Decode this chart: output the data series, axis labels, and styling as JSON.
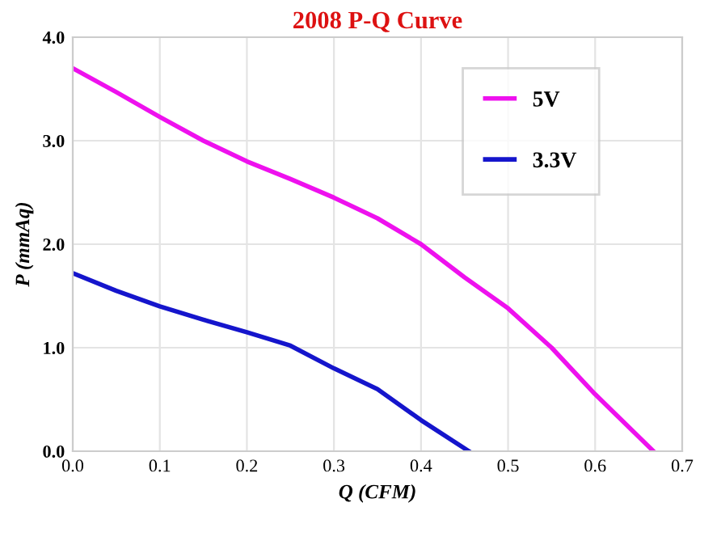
{
  "chart_data": {
    "type": "line",
    "title": "2008 P-Q Curve",
    "xlabel": "Q (CFM)",
    "ylabel": "P (mmAq)",
    "xlim": [
      0.0,
      0.7
    ],
    "xticks": [
      {
        "value": 0,
        "label": "0.0"
      },
      0.1,
      0.2,
      0.3,
      0.4,
      0.5,
      0.6,
      0.7
    ],
    "ylim": [
      0.0,
      4.0
    ],
    "yticks": [
      {
        "value": 0,
        "label": "0.0"
      },
      {
        "value": 1,
        "label": "1.0"
      },
      {
        "value": 2,
        "label": "2.0"
      },
      {
        "value": 3,
        "label": "3.0"
      },
      {
        "value": 4,
        "label": "4.0"
      }
    ],
    "grid": true,
    "legend": "top right",
    "marker": "none",
    "line_style": "solid",
    "series": [
      {
        "name": "5V",
        "color": "#ee11ee",
        "x": [
          0,
          0.05,
          0.1,
          0.15,
          0.2,
          0.25,
          0.3,
          0.35,
          0.4,
          0.45,
          0.5,
          0.55,
          0.6,
          0.667
        ],
        "values": [
          3.7,
          3.47,
          3.23,
          3.0,
          2.8,
          2.63,
          2.45,
          2.25,
          2.0,
          1.68,
          1.38,
          1.0,
          0.55,
          0.0
        ]
      },
      {
        "name": "3.3V",
        "color": "#1515cc",
        "x": [
          0,
          0.05,
          0.1,
          0.15,
          0.2,
          0.25,
          0.3,
          0.35,
          0.4,
          0.455
        ],
        "values": [
          1.72,
          1.55,
          1.4,
          1.27,
          1.15,
          1.02,
          0.8,
          0.6,
          0.3,
          0.0
        ]
      }
    ]
  }
}
